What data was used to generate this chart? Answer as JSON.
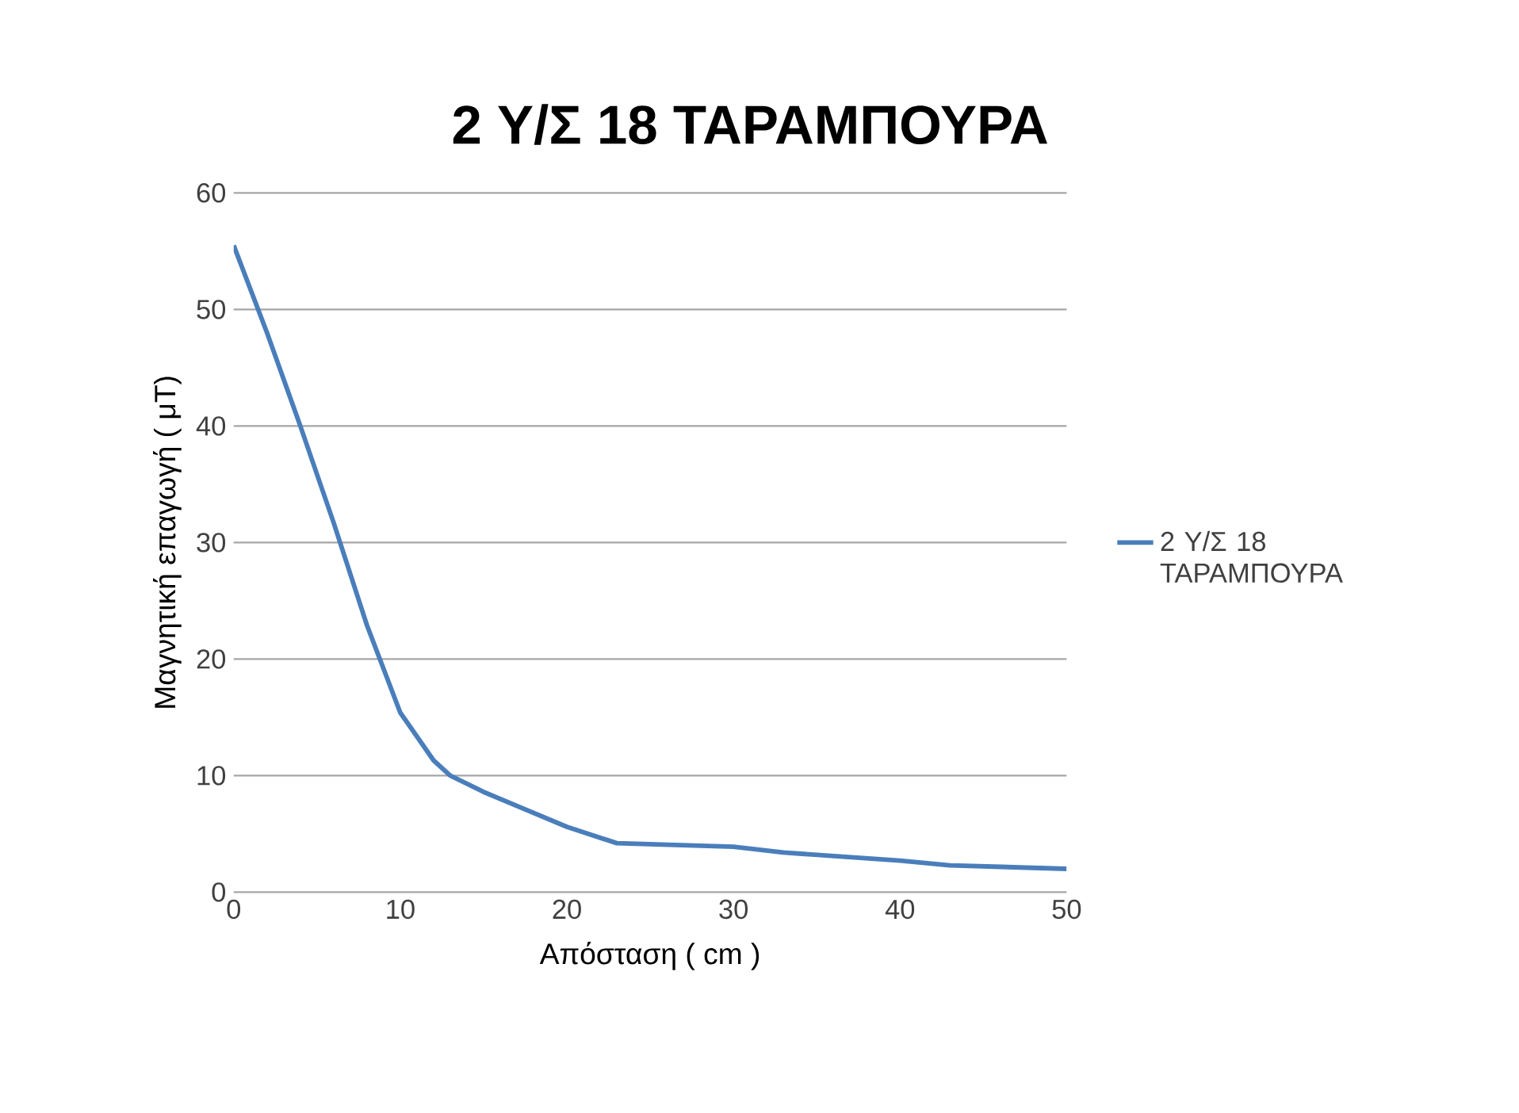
{
  "chart_data": {
    "type": "line",
    "title": "2 Υ/Σ  18 ΤΑΡΑΜΠΟΥΡΑ",
    "xlabel": "Απόσταση ( cm )",
    "ylabel": "Μαγνητική επαγωγή  ( μT)",
    "series": [
      {
        "name": "2 Υ/Σ  18 ΤΑΡΑΜΠΟΥΡΑ",
        "color": "#4a7ebb",
        "x": [
          0,
          2,
          4,
          6,
          8,
          10,
          12,
          13,
          15,
          20,
          23,
          30,
          33,
          40,
          43,
          50
        ],
        "values": [
          55.5,
          48,
          40,
          31.7,
          22.9,
          15.4,
          11.3,
          10,
          8.6,
          5.6,
          4.2,
          3.9,
          3.4,
          2.7,
          2.3,
          2.0
        ]
      }
    ],
    "xlim": [
      0,
      50
    ],
    "xticks": [
      0,
      10,
      20,
      30,
      40,
      50
    ],
    "ylim": [
      0,
      60
    ],
    "yticks": [
      0,
      10,
      20,
      30,
      40,
      50,
      60
    ],
    "grid": "y",
    "legend": "right",
    "marker": "none",
    "line_style": "solid"
  }
}
